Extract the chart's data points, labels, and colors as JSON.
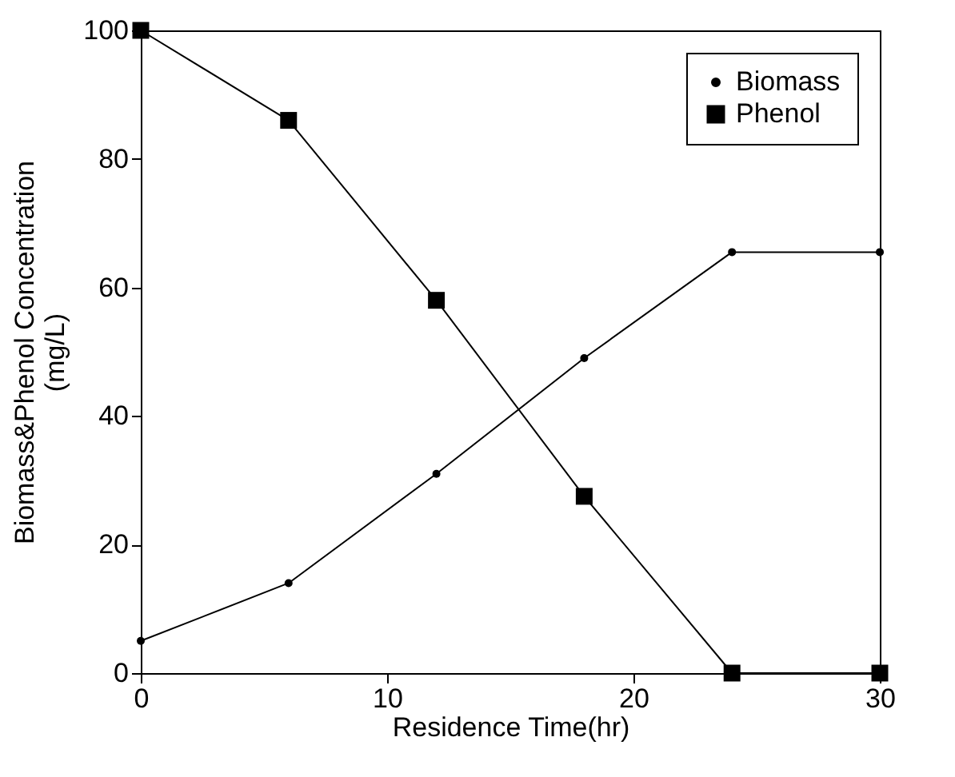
{
  "chart_data": {
    "type": "line",
    "xlabel": "Residence Time(hr)",
    "ylabel": "Biomass&Phenol Concentration\n(mg/L)",
    "x": [
      0,
      6,
      12,
      18,
      24,
      30
    ],
    "series": [
      {
        "name": "Biomass",
        "color": "#000000",
        "marker": "circle",
        "values": [
          5,
          14,
          31,
          49,
          65.5,
          65.5
        ]
      },
      {
        "name": "Phenol",
        "color": "#000000",
        "marker": "square",
        "values": [
          100,
          86,
          58,
          27.5,
          0,
          0
        ]
      }
    ],
    "xlim": [
      0,
      30
    ],
    "xticks": [
      0,
      10,
      20,
      30
    ],
    "ylim": [
      0,
      100
    ],
    "yticks": [
      0,
      20,
      40,
      60,
      80,
      100
    ],
    "grid": false,
    "legend": "top right",
    "line_style": "solid"
  }
}
